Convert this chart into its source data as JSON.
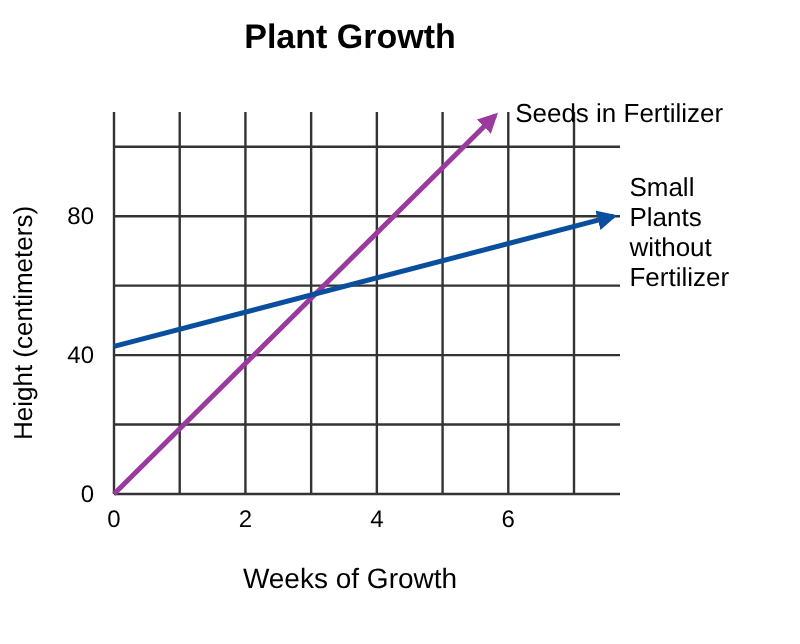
{
  "chart_data": {
    "type": "line",
    "title": "Plant Growth",
    "xlabel": "Weeks of Growth",
    "ylabel": "Height (centimeters)",
    "xlim": [
      0,
      7.7
    ],
    "ylim": [
      0,
      110
    ],
    "xticks": [
      0,
      {
        "value": 1,
        "label": null
      },
      2,
      {
        "value": 3,
        "label": null
      },
      4,
      {
        "value": 5,
        "label": null
      },
      6,
      {
        "value": 7,
        "label": null
      }
    ],
    "yticks": [
      0,
      {
        "value": 20,
        "label": null
      },
      40,
      {
        "value": 60,
        "label": null
      },
      80,
      {
        "value": 100,
        "label": null
      }
    ],
    "grid": true,
    "marker": "none",
    "line_style": "solid",
    "series": [
      {
        "name": "Seeds in Fertilizer",
        "color": "#9b3a9e",
        "x": [
          0,
          5.8
        ],
        "values": [
          0,
          109
        ]
      },
      {
        "name": "Small Plants without Fertilizer",
        "color": "#0a4f9e",
        "x": [
          0,
          7.6
        ],
        "values": [
          42.5,
          80
        ]
      }
    ]
  }
}
